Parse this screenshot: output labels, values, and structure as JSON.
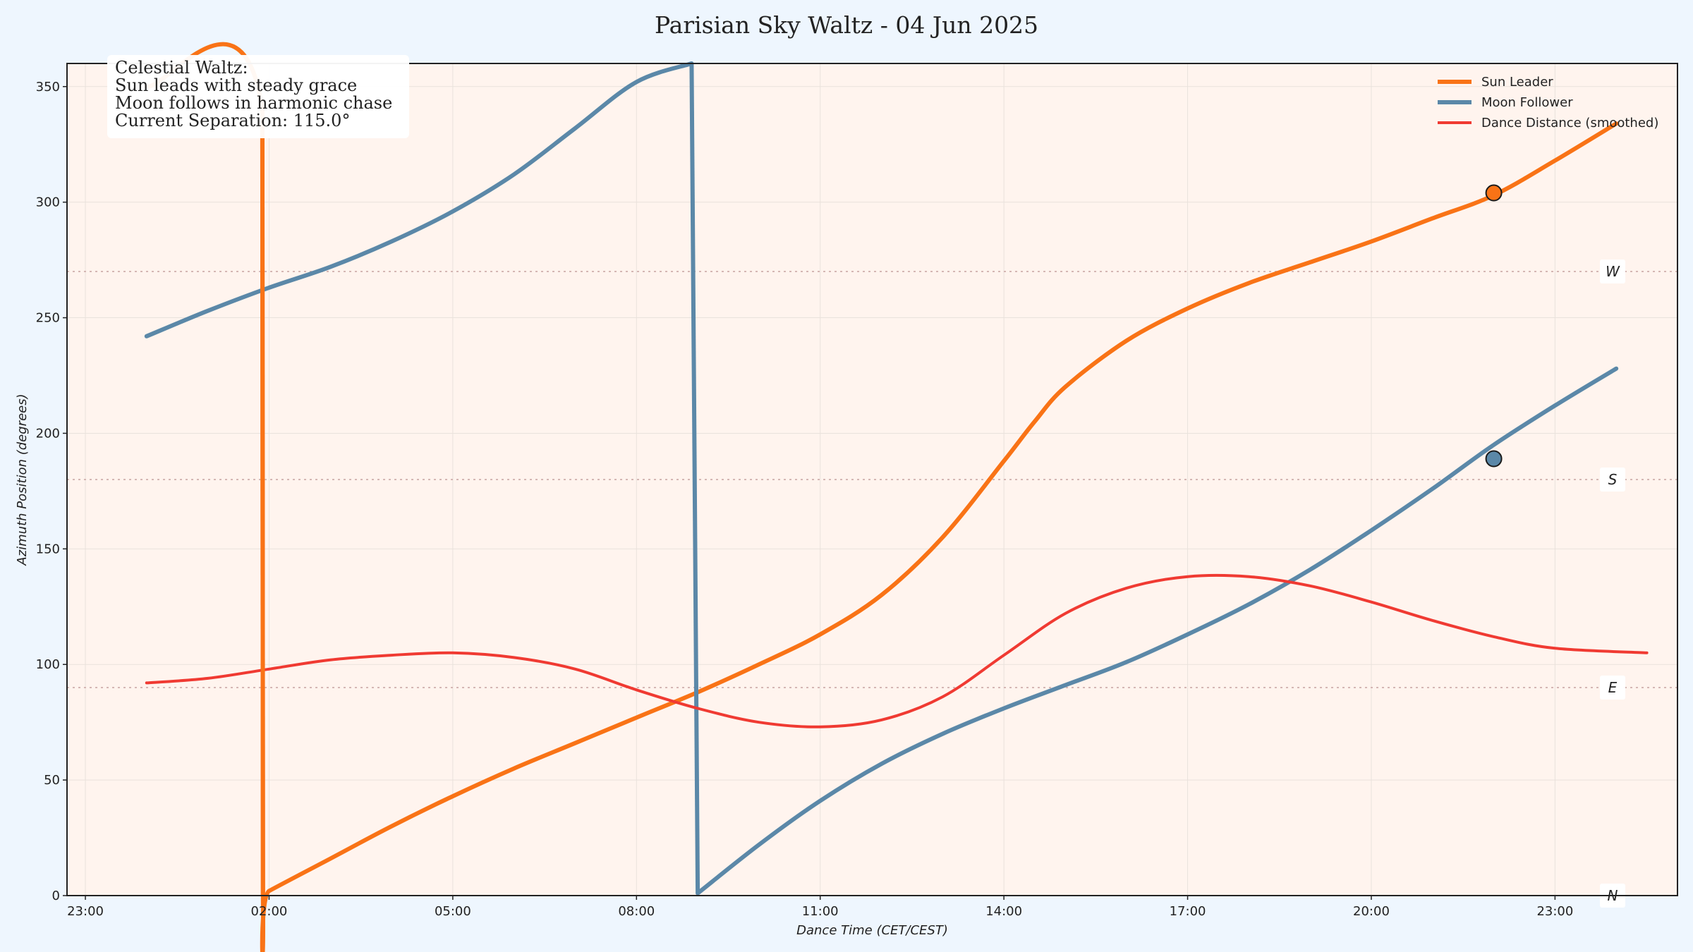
{
  "chart_data": {
    "type": "line",
    "title": "Parisian Sky Waltz - 04 Jun 2025",
    "xlabel": "Dance Time (CET/CEST)",
    "ylabel": "Azimuth Position (degrees)",
    "x_ticks": [
      "23:00",
      "02:00",
      "05:00",
      "08:00",
      "11:00",
      "14:00",
      "17:00",
      "20:00",
      "23:00"
    ],
    "x_tick_hours": [
      -1,
      2,
      5,
      8,
      11,
      14,
      17,
      20,
      23
    ],
    "xlim": [
      -1.3,
      25.0
    ],
    "ylim": [
      0,
      360
    ],
    "y_ticks": [
      0,
      50,
      100,
      150,
      200,
      250,
      300,
      350
    ],
    "grid": true,
    "legend_position": "top-right",
    "compass_lines": [
      {
        "label": "N",
        "value": 0
      },
      {
        "label": "E",
        "value": 90
      },
      {
        "label": "S",
        "value": 180
      },
      {
        "label": "W",
        "value": 270
      }
    ],
    "info_box": {
      "lines": [
        "Celestial Waltz:",
        "Sun leads with steady grace",
        "Moon follows in harmonic chase",
        "Current Separation: 115.0°"
      ]
    },
    "series": [
      {
        "name": "Sun Leader",
        "color": "#f97316",
        "x": [
          0.0,
          1.89,
          1.9,
          2.0,
          3.0,
          4.0,
          5.0,
          6.0,
          7.0,
          8.0,
          9.0,
          10.0,
          11.0,
          12.0,
          13.0,
          14.0,
          14.5,
          15.0,
          16.0,
          17.0,
          18.0,
          19.0,
          20.0,
          21.0,
          22.0,
          23.0,
          24.0
        ],
        "y": [
          350,
          340,
          0,
          2,
          16,
          30,
          43,
          55,
          66,
          77,
          88,
          100,
          113,
          130,
          155,
          188,
          205,
          220,
          240,
          254,
          265,
          274,
          283,
          293,
          303,
          318,
          334
        ]
      },
      {
        "name": "Moon Follower",
        "color": "#5b88a8",
        "x": [
          0.0,
          1.0,
          2.0,
          3.0,
          4.0,
          5.0,
          6.0,
          7.0,
          8.0,
          8.9,
          9.0,
          10.0,
          11.0,
          12.0,
          13.0,
          14.0,
          15.0,
          16.0,
          17.0,
          18.0,
          19.0,
          20.0,
          21.0,
          22.0,
          23.0,
          24.0
        ],
        "y": [
          242,
          253,
          263,
          272,
          283,
          296,
          312,
          332,
          352,
          360,
          1,
          22,
          41,
          57,
          70,
          81,
          91,
          101,
          113,
          126,
          141,
          158,
          176,
          195,
          212,
          228
        ],
        "break_after_index": 9
      },
      {
        "name": "Dance Distance (smoothed)",
        "color": "#f03a32",
        "x": [
          0.0,
          1.0,
          2.0,
          3.0,
          4.0,
          5.0,
          6.0,
          7.0,
          8.0,
          9.0,
          10.0,
          11.0,
          12.0,
          13.0,
          14.0,
          15.0,
          16.0,
          17.0,
          18.0,
          19.0,
          20.0,
          21.0,
          22.0,
          23.0,
          24.5
        ],
        "y": [
          92,
          94,
          98,
          102,
          104,
          105,
          103,
          98,
          89,
          81,
          75,
          73,
          76,
          86,
          104,
          122,
          133,
          138,
          138,
          134,
          127,
          119,
          112,
          107,
          105
        ]
      }
    ],
    "current_markers": [
      {
        "series": "Sun Leader",
        "x": 22.0,
        "y": 304,
        "color": "#f97316"
      },
      {
        "series": "Moon Follower",
        "x": 22.0,
        "y": 189,
        "color": "#5b88a8"
      }
    ]
  }
}
